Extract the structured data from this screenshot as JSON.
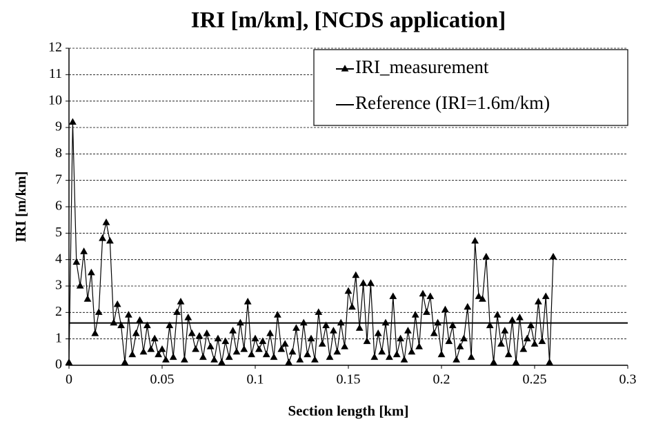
{
  "chart_data": {
    "type": "line",
    "title": "IRI [m/km], [NCDS application]",
    "xlabel": "Section length [km]",
    "ylabel": "IRI [m/km]",
    "xlim": [
      0,
      0.3
    ],
    "xticks": [
      0,
      0.05,
      0.1,
      0.15,
      0.2,
      0.25,
      0.3
    ],
    "ylim": [
      0,
      12
    ],
    "yticks": [
      0,
      1,
      2,
      3,
      4,
      5,
      6,
      7,
      8,
      9,
      10,
      11,
      12
    ],
    "grid": true,
    "legend": "upper right",
    "series": [
      {
        "name": "IRI_measurement",
        "color": "#000000",
        "marker": "triangle",
        "x": [
          0,
          0.002,
          0.004,
          0.006,
          0.008,
          0.01,
          0.012,
          0.014,
          0.016,
          0.018,
          0.02,
          0.022,
          0.024,
          0.026,
          0.028,
          0.03,
          0.032,
          0.034,
          0.036,
          0.038,
          0.04,
          0.042,
          0.044,
          0.046,
          0.048,
          0.05,
          0.052,
          0.054,
          0.056,
          0.058,
          0.06,
          0.062,
          0.064,
          0.066,
          0.068,
          0.07,
          0.072,
          0.074,
          0.076,
          0.078,
          0.08,
          0.082,
          0.084,
          0.086,
          0.088,
          0.09,
          0.092,
          0.094,
          0.096,
          0.098,
          0.1,
          0.102,
          0.104,
          0.106,
          0.108,
          0.11,
          0.112,
          0.114,
          0.116,
          0.118,
          0.12,
          0.122,
          0.124,
          0.126,
          0.128,
          0.13,
          0.132,
          0.134,
          0.136,
          0.138,
          0.14,
          0.142,
          0.144,
          0.146,
          0.148,
          0.15,
          0.152,
          0.154,
          0.156,
          0.158,
          0.16,
          0.162,
          0.164,
          0.166,
          0.168,
          0.17,
          0.172,
          0.174,
          0.176,
          0.178,
          0.18,
          0.182,
          0.184,
          0.186,
          0.188,
          0.19,
          0.192,
          0.194,
          0.196,
          0.198,
          0.2,
          0.202,
          0.204,
          0.206,
          0.208,
          0.21,
          0.212,
          0.214,
          0.216,
          0.218,
          0.22,
          0.222,
          0.224,
          0.226,
          0.228,
          0.23,
          0.232,
          0.234,
          0.236,
          0.238,
          0.24,
          0.242,
          0.244,
          0.246,
          0.248,
          0.25,
          0.252,
          0.254,
          0.256,
          0.258,
          0.26
        ],
        "values": [
          0.1,
          9.2,
          3.9,
          3.0,
          4.3,
          2.5,
          3.5,
          1.2,
          2.0,
          4.8,
          5.4,
          4.7,
          1.6,
          2.3,
          1.5,
          0.1,
          1.9,
          0.4,
          1.2,
          1.7,
          0.5,
          1.5,
          0.6,
          1.0,
          0.4,
          0.6,
          0.2,
          1.5,
          0.3,
          2.0,
          2.4,
          0.2,
          1.8,
          1.2,
          0.6,
          1.1,
          0.3,
          1.2,
          0.7,
          0.2,
          1.0,
          0.1,
          0.9,
          0.3,
          1.3,
          0.5,
          1.6,
          0.6,
          2.4,
          0.4,
          1.0,
          0.6,
          0.9,
          0.4,
          1.2,
          0.3,
          1.9,
          0.6,
          0.8,
          0.1,
          0.5,
          1.4,
          0.2,
          1.6,
          0.4,
          1.0,
          0.2,
          2.0,
          0.8,
          1.5,
          0.3,
          1.3,
          0.5,
          1.6,
          0.7,
          2.8,
          2.2,
          3.4,
          1.4,
          3.1,
          0.9,
          3.1,
          0.3,
          1.2,
          0.5,
          1.6,
          0.3,
          2.6,
          0.4,
          1.0,
          0.2,
          1.3,
          0.5,
          1.9,
          0.7,
          2.7,
          2.0,
          2.6,
          1.2,
          1.6,
          0.4,
          2.1,
          0.9,
          1.5,
          0.2,
          0.7,
          1.0,
          2.2,
          0.3,
          4.7,
          2.6,
          2.5,
          4.1,
          1.5,
          0.1,
          1.9,
          0.8,
          1.3,
          0.4,
          1.7,
          0.1,
          1.8,
          0.6,
          1.0,
          1.5,
          0.8,
          2.4,
          0.9,
          2.6,
          0.1,
          4.1
        ]
      },
      {
        "name": "Reference (IRI=1.6m/km)",
        "color": "#000000",
        "x": [
          0,
          0.3
        ],
        "values": [
          1.6,
          1.6
        ]
      }
    ]
  }
}
